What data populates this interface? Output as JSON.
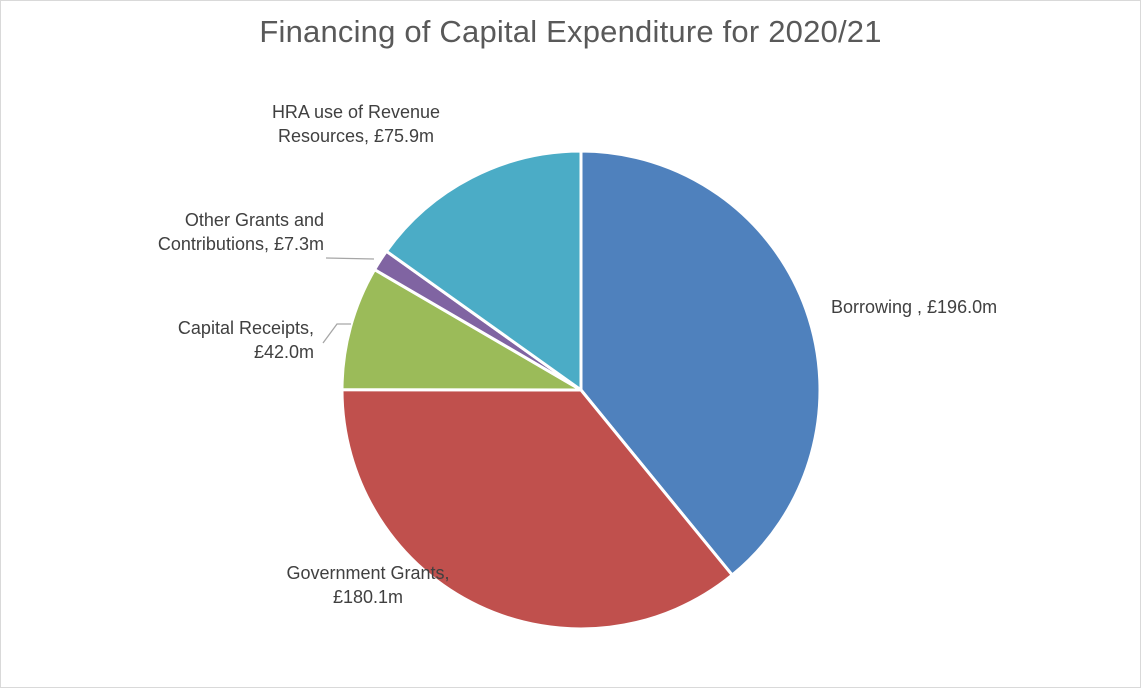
{
  "chart_data": {
    "type": "pie",
    "title": "Financing of Capital Expenditure for 2020/21",
    "unit": "£m",
    "start_angle_deg": 0,
    "direction": "clockwise",
    "slices": [
      {
        "name": "Borrowing",
        "value": 196.0,
        "color": "#4f81bd",
        "label_lines": [
          "Borrowing , £196.0m"
        ]
      },
      {
        "name": "Government Grants",
        "value": 180.1,
        "color": "#c0504d",
        "label_lines": [
          "Government Grants,",
          "£180.1m"
        ]
      },
      {
        "name": "Capital Receipts",
        "value": 42.0,
        "color": "#9bbb59",
        "label_lines": [
          "Capital Receipts,",
          "£42.0m"
        ]
      },
      {
        "name": "Other Grants and Contributions",
        "value": 7.3,
        "color": "#8064a2",
        "label_lines": [
          "Other Grants and",
          "Contributions, £7.3m"
        ]
      },
      {
        "name": "HRA use of Revenue Resources",
        "value": 75.9,
        "color": "#4bacc6",
        "label_lines": [
          "HRA use of Revenue",
          "Resources, £75.9m"
        ]
      }
    ],
    "legend": "none",
    "data_labels": "outside-with-leader-lines"
  }
}
